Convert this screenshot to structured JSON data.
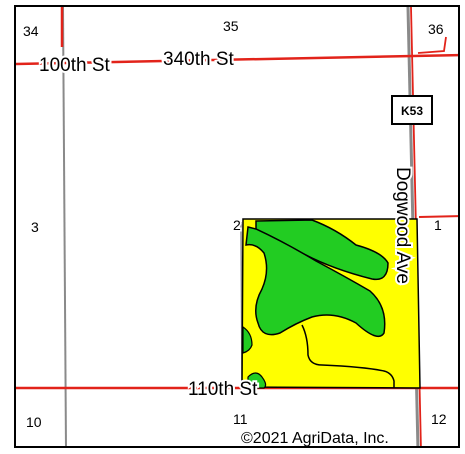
{
  "map": {
    "roads": {
      "north_west": "100th St",
      "north_east": "340th St",
      "south": "110th St",
      "east": "Dogwood Ave",
      "highway_shield": "K53"
    },
    "sections": {
      "nw": "34",
      "n": "35",
      "ne": "36",
      "w": "3",
      "e": "1",
      "sw": "10",
      "s": "11",
      "se": "12",
      "corner_marker": "2"
    },
    "copyright": "©2021 AgriData, Inc.",
    "colors": {
      "road_red": "#e2231a",
      "section_line_gray": "#8a8a8a",
      "field_yellow": "#ffff00",
      "zone_green": "#22cc22",
      "outline_black": "#000000"
    }
  }
}
